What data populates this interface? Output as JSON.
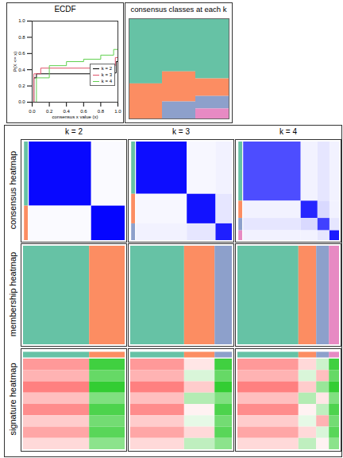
{
  "chart_data": [
    {
      "type": "line",
      "title": "ECDF",
      "xlabel": "consensus x value (x)",
      "ylabel": "P(X <= x)",
      "xlim": [
        0,
        1
      ],
      "ylim": [
        0,
        1
      ],
      "xticks": [
        {
          "value": 0,
          "label": "0.0"
        },
        {
          "value": 0.2,
          "label": "0.2"
        },
        {
          "value": 0.4,
          "label": "0.4"
        },
        {
          "value": 0.6,
          "label": "0.6"
        },
        {
          "value": 0.8,
          "label": "0.8"
        },
        {
          "value": 1,
          "label": "1.0"
        }
      ],
      "yticks": [
        {
          "value": 0,
          "label": "0.0"
        },
        {
          "value": 0.2,
          "label": "0.2"
        },
        {
          "value": 0.4,
          "label": "0.4"
        },
        {
          "value": 0.6,
          "label": "0.6"
        },
        {
          "value": 0.8,
          "label": "0.8"
        },
        {
          "value": 1,
          "label": "1.0"
        }
      ],
      "legend": "bottom-right",
      "series": [
        {
          "name": "k = 2",
          "color": "#000000",
          "x": [
            0,
            0.02,
            0.05,
            0.95,
            0.98,
            1
          ],
          "values": [
            0,
            0.3,
            0.35,
            0.36,
            0.5,
            1
          ]
        },
        {
          "name": "k = 3",
          "color": "#DF536B",
          "x": [
            0,
            0.02,
            0.1,
            0.9,
            0.97,
            1
          ],
          "values": [
            0,
            0.35,
            0.42,
            0.45,
            0.55,
            1
          ]
        },
        {
          "name": "k = 4",
          "color": "#61D04F",
          "x": [
            0,
            0.05,
            0.2,
            0.4,
            0.6,
            0.8,
            0.95,
            1
          ],
          "values": [
            0,
            0.3,
            0.45,
            0.5,
            0.53,
            0.58,
            0.65,
            1
          ]
        }
      ]
    },
    {
      "type": "class_columns",
      "title": "consensus classes at each k",
      "k": [
        2,
        3,
        4
      ],
      "colors": [
        "#66C2A5",
        "#FC8D62",
        "#8DA0CB",
        "#E78AC3"
      ],
      "class_sizes": [
        [
          130,
          70
        ],
        [
          106,
          60,
          34
        ],
        [
          120,
          35,
          25,
          20
        ]
      ]
    },
    {
      "type": "heatmap_grid",
      "columns": [
        "k = 2",
        "k = 3",
        "k = 4"
      ],
      "rows": [
        "consensus heatmap",
        "membership heatmap",
        "signature heatmap"
      ],
      "consensus_color_domain": [
        0,
        1
      ],
      "signature_color_domain": [
        -2,
        0,
        2
      ],
      "consensus": [
        [
          [
            0.97,
            0.02
          ],
          [
            0.02,
            0.98
          ]
        ],
        [
          [
            0.95,
            0.03,
            0.05
          ],
          [
            0.03,
            0.93,
            0.1
          ],
          [
            0.05,
            0.1,
            0.88
          ]
        ],
        [
          [
            0.7,
            0.05,
            0.1,
            0.05
          ],
          [
            0.05,
            0.85,
            0.15,
            0.05
          ],
          [
            0.1,
            0.15,
            0.75,
            0.1
          ],
          [
            0.05,
            0.05,
            0.1,
            0.9
          ]
        ]
      ],
      "signature": [
        [
          [
            0.8,
            -1.5
          ],
          [
            0.6,
            -1.2
          ],
          [
            1.0,
            -1.6
          ],
          [
            0.5,
            -1.0
          ],
          [
            0.9,
            -1.4
          ],
          [
            0.4,
            -1.1
          ],
          [
            0.7,
            -1.3
          ],
          [
            0.3,
            -0.9
          ]
        ],
        [
          [
            0.8,
            0.2,
            -1.5
          ],
          [
            0.6,
            -0.3,
            -1.2
          ],
          [
            1.0,
            0.4,
            -1.6
          ],
          [
            0.5,
            -0.6,
            -1.0
          ],
          [
            0.9,
            0.1,
            -1.4
          ],
          [
            0.4,
            -0.2,
            -1.1
          ],
          [
            0.7,
            0.3,
            -1.3
          ],
          [
            0.3,
            -0.5,
            -0.9
          ]
        ],
        [
          [
            0.8,
            0.3,
            -0.4,
            -1.5
          ],
          [
            0.6,
            -0.3,
            0.5,
            -1.2
          ],
          [
            1.0,
            0.4,
            -0.8,
            -1.6
          ],
          [
            0.5,
            -0.6,
            0.2,
            -1.0
          ],
          [
            0.9,
            0.1,
            -0.5,
            -1.4
          ],
          [
            0.4,
            -0.2,
            0.6,
            -1.1
          ],
          [
            0.7,
            0.3,
            -0.3,
            -1.3
          ],
          [
            0.3,
            -0.5,
            0.1,
            -0.9
          ]
        ]
      ]
    }
  ]
}
